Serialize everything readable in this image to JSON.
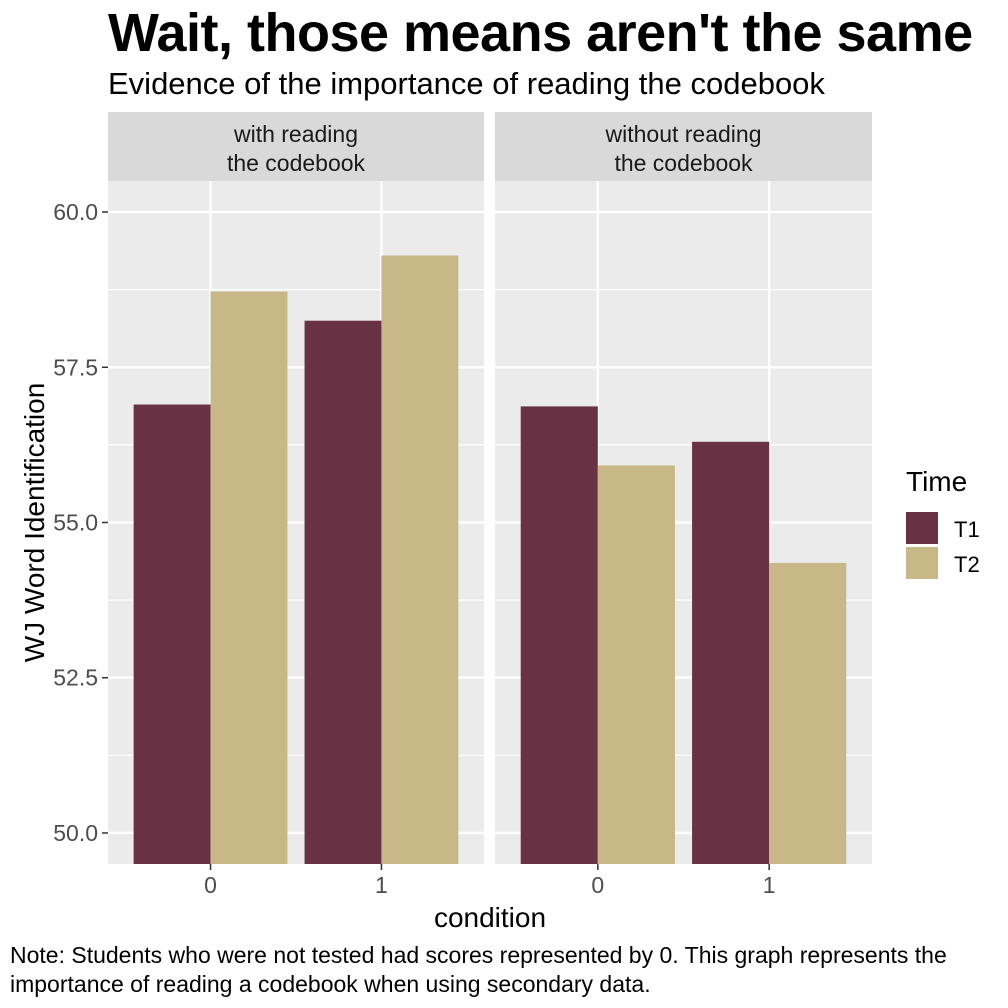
{
  "title": "Wait, those means aren't the same",
  "subtitle": "Evidence of the importance of reading the codebook",
  "note": "Note: Students who were not tested had scores represented by 0. This graph represents the importance of reading a codebook when using secondary data.",
  "colors": {
    "T1": "#693244",
    "T2": "#c8b888",
    "panel_bg": "#ebebeb",
    "strip_bg": "#d9d9d9",
    "grid": "#ffffff"
  },
  "chart_data": {
    "type": "bar",
    "position": "dodge",
    "xlabel": "condition",
    "ylabel": "WJ Word Identification",
    "ylim": [
      49.5,
      60.5
    ],
    "y_ticks": [
      50.0,
      52.5,
      55.0,
      57.5,
      60.0
    ],
    "y_tick_labels": [
      "50.0",
      "52.5",
      "55.0",
      "57.5",
      "60.0"
    ],
    "categories": [
      "0",
      "1"
    ],
    "legend": {
      "title": "Time",
      "entries": [
        "T1",
        "T2"
      ],
      "placement": "right"
    },
    "facets": [
      {
        "strip_lines": [
          "with reading",
          "the codebook"
        ],
        "series": [
          {
            "name": "T1",
            "values": [
              56.9,
              58.25
            ]
          },
          {
            "name": "T2",
            "values": [
              58.72,
              59.3
            ]
          }
        ]
      },
      {
        "strip_lines": [
          "without reading",
          "the codebook"
        ],
        "series": [
          {
            "name": "T1",
            "values": [
              56.87,
              56.3
            ]
          },
          {
            "name": "T2",
            "values": [
              55.92,
              54.35
            ]
          }
        ]
      }
    ]
  }
}
